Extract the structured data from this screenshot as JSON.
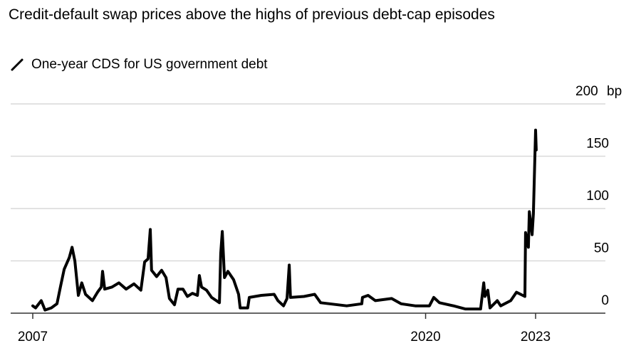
{
  "chart_data": {
    "type": "line",
    "title": "Credit-default swap prices above the highs of previous debt-cap episodes",
    "legend": [
      {
        "label": "One-year CDS for US government debt",
        "color": "#000000"
      }
    ],
    "legend_placement": "top-left",
    "ylabel": "bp",
    "ylim": [
      0,
      200
    ],
    "xlim": [
      2006.7,
      2025.2
    ],
    "grid": true,
    "y_ticks": [
      {
        "value": 0,
        "label": "0"
      },
      {
        "value": 50,
        "label": "50"
      },
      {
        "value": 100,
        "label": "100"
      },
      {
        "value": 150,
        "label": "150"
      },
      {
        "value": 200,
        "label": "200",
        "unit": "bp"
      }
    ],
    "x_ticks": [
      {
        "value": 2007.0,
        "label": "2007"
      },
      {
        "value": 2019.5,
        "label": "2020"
      },
      {
        "value": 2023.0,
        "label": "2023"
      }
    ],
    "series": [
      {
        "name": "One-year CDS for US government debt",
        "color": "#000000",
        "x": [
          2007.0,
          2007.09,
          2007.27,
          2007.39,
          2007.59,
          2007.77,
          2007.88,
          2008.0,
          2008.16,
          2008.25,
          2008.34,
          2008.45,
          2008.56,
          2008.68,
          2008.9,
          2009.06,
          2009.18,
          2009.22,
          2009.29,
          2009.52,
          2009.74,
          2009.97,
          2010.22,
          2010.44,
          2010.56,
          2010.67,
          2010.74,
          2010.78,
          2010.94,
          2011.1,
          2011.24,
          2011.35,
          2011.51,
          2011.62,
          2011.78,
          2011.92,
          2012.08,
          2012.24,
          2012.3,
          2012.37,
          2012.53,
          2012.69,
          2012.94,
          2012.98,
          2013.03,
          2013.1,
          2013.21,
          2013.39,
          2013.55,
          2013.6,
          2013.84,
          2013.89,
          2014.27,
          2014.68,
          2014.8,
          2014.98,
          2015.09,
          2015.16,
          2015.2,
          2015.63,
          2015.97,
          2016.16,
          2016.99,
          2017.47,
          2017.49,
          2017.67,
          2017.9,
          2018.42,
          2018.72,
          2019.17,
          2019.62,
          2019.76,
          2019.94,
          2020.39,
          2020.76,
          2021.25,
          2021.35,
          2021.39,
          2021.48,
          2021.55,
          2021.78,
          2021.89,
          2022.21,
          2022.39,
          2022.66,
          2022.68,
          2022.77,
          2022.8,
          2022.89,
          2022.93,
          2023.0,
          2023.02
        ],
        "y": [
          7,
          5,
          12,
          3,
          5,
          9,
          25,
          42,
          53,
          63,
          50,
          17,
          29,
          18,
          12,
          20,
          25,
          40,
          23,
          25,
          29,
          23,
          28,
          22,
          49,
          52,
          80,
          41,
          35,
          41,
          34,
          14,
          8,
          23,
          23,
          16,
          19,
          17,
          36,
          25,
          22,
          15,
          10,
          57,
          78,
          34,
          40,
          32,
          18,
          5,
          5,
          15,
          17,
          18,
          12,
          7,
          14,
          46,
          15,
          16,
          18,
          10,
          7,
          9,
          15,
          17,
          12,
          14,
          9,
          7,
          7,
          15,
          10,
          7,
          4,
          4,
          29,
          16,
          22,
          5,
          12,
          7,
          12,
          20,
          16,
          77,
          63,
          97,
          75,
          95,
          175,
          156
        ]
      }
    ]
  }
}
